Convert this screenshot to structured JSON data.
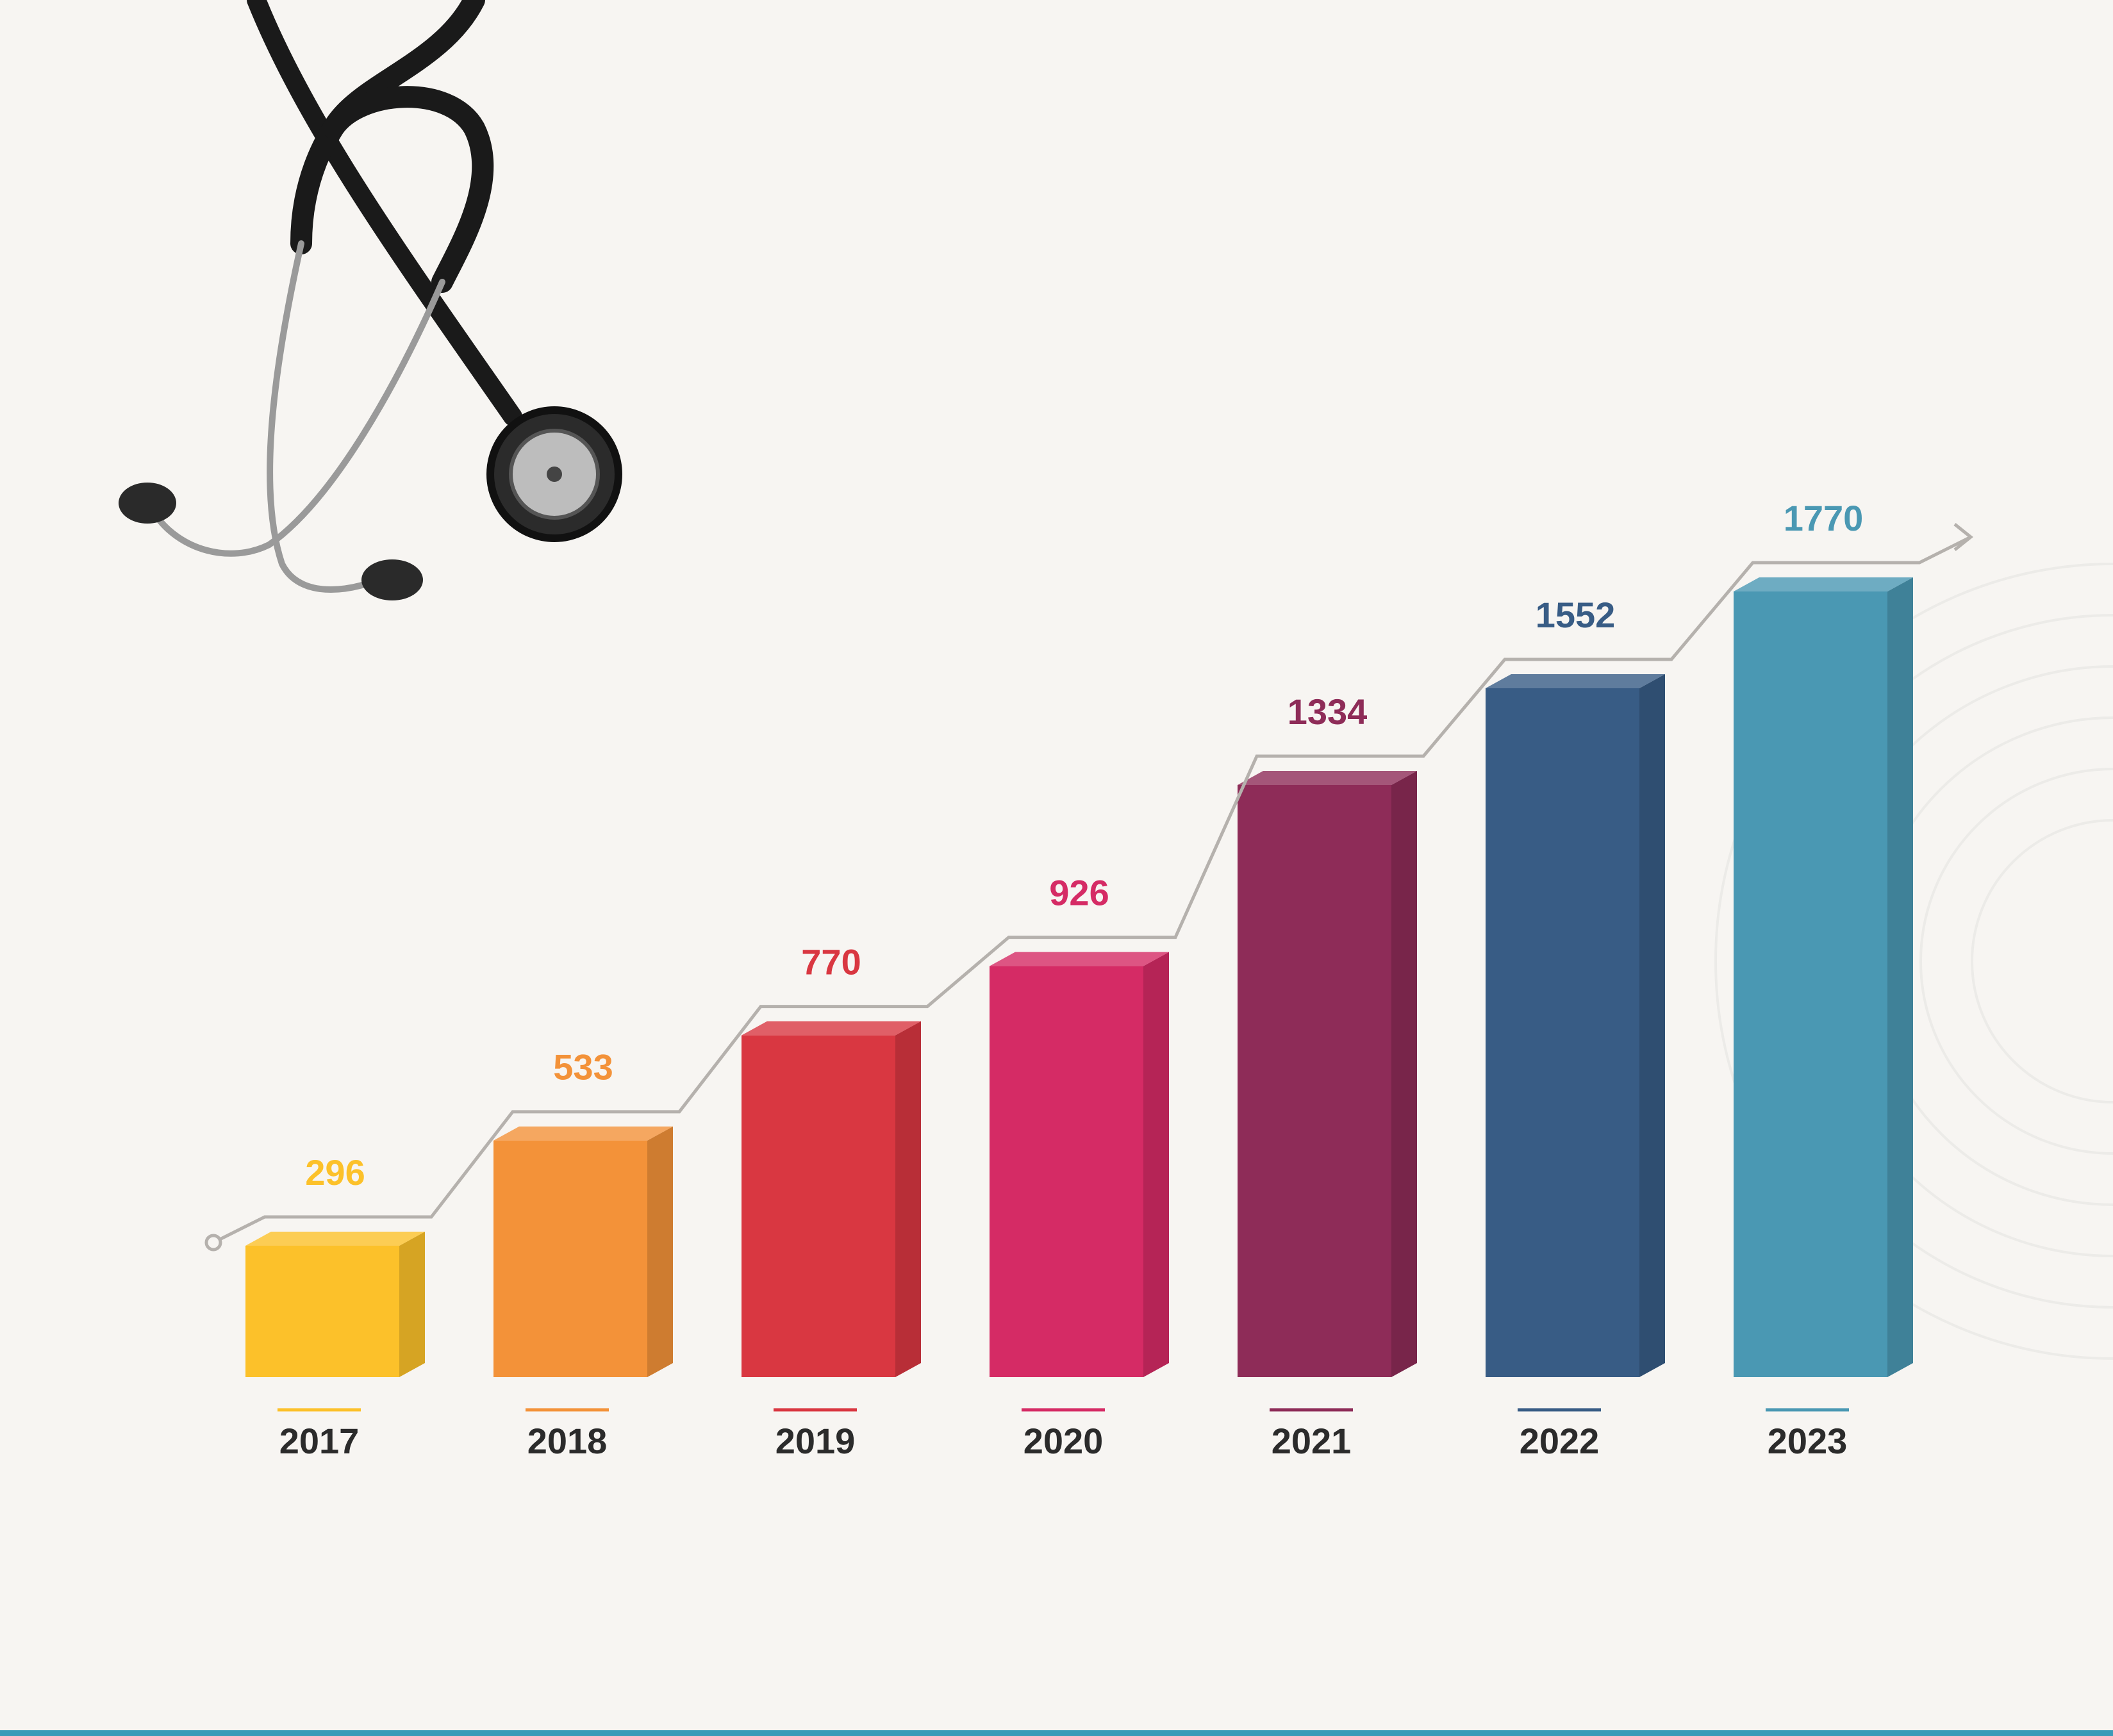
{
  "chart_data": {
    "type": "bar",
    "categories": [
      "2017",
      "2018",
      "2019",
      "2020",
      "2021",
      "2022",
      "2023"
    ],
    "values": [
      296,
      533,
      770,
      926,
      1334,
      1552,
      1770
    ],
    "colors": [
      "#fcc12a",
      "#f39239",
      "#d93741",
      "#d52b65",
      "#8e2c58",
      "#385c85",
      "#4a98b3"
    ]
  }
}
